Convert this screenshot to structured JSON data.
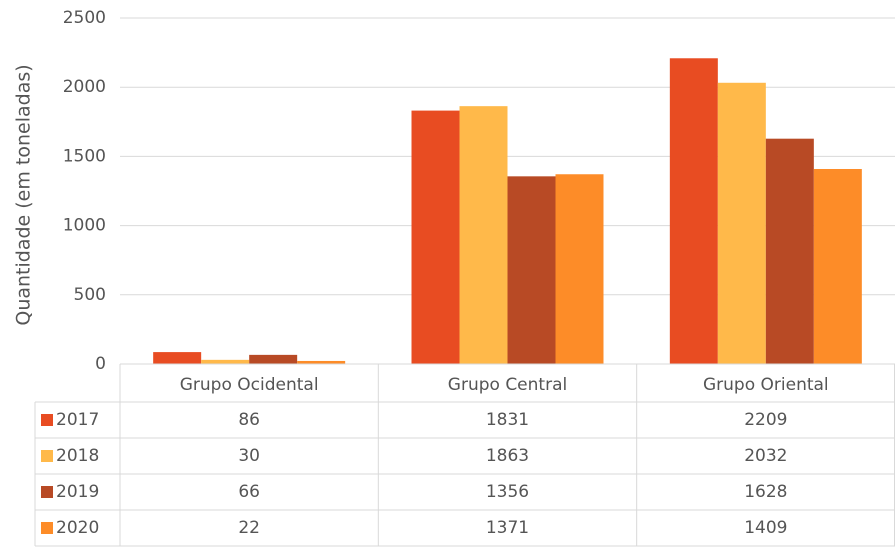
{
  "chart_data": {
    "type": "bar",
    "y_label": "Quantidade (em toneladas)",
    "categories": [
      "Grupo Ocidental",
      "Grupo Central",
      "Grupo Oriental"
    ],
    "series": [
      {
        "name": "2017",
        "color": "#e84c22",
        "values": [
          86,
          1831,
          2209
        ]
      },
      {
        "name": "2018",
        "color": "#ffb94a",
        "values": [
          30,
          1863,
          2032
        ]
      },
      {
        "name": "2019",
        "color": "#b84a25",
        "values": [
          66,
          1356,
          1628
        ]
      },
      {
        "name": "2020",
        "color": "#fd8c28",
        "values": [
          22,
          1371,
          1409
        ]
      }
    ],
    "ylim": [
      0,
      2500
    ],
    "yticks": [
      0,
      500,
      1000,
      1500,
      2000,
      2500
    ],
    "grid": true,
    "data_table": true
  }
}
